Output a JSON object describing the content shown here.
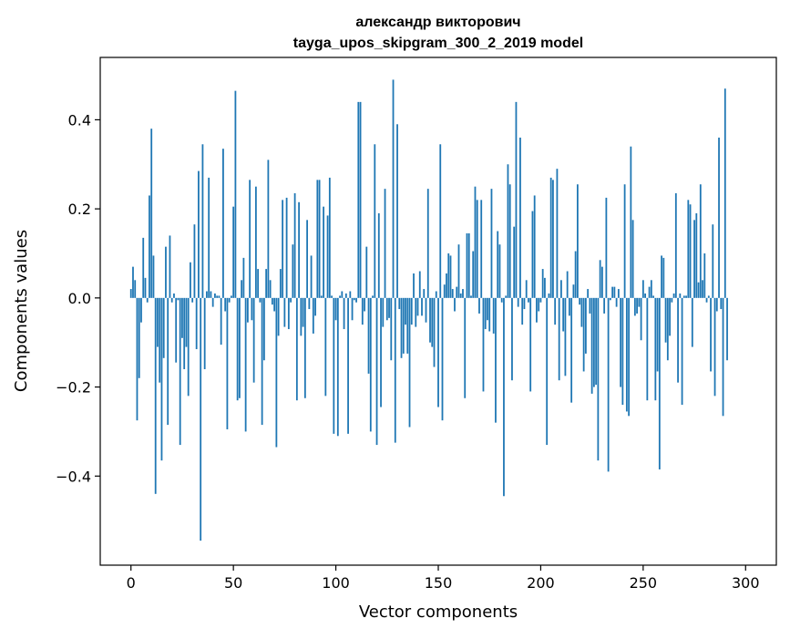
{
  "chart_data": {
    "type": "bar",
    "title": "александр викторович",
    "subtitle": "tayga_upos_skipgram_300_2_2019 model",
    "xlabel": "Vector components",
    "ylabel": "Components values",
    "xlim": [
      -15,
      315
    ],
    "ylim": [
      -0.6,
      0.54
    ],
    "xticks": [
      0,
      50,
      100,
      150,
      200,
      250,
      300
    ],
    "xtick_labels": [
      "0",
      "50",
      "100",
      "150",
      "200",
      "250",
      "300"
    ],
    "yticks": [
      -0.4,
      -0.2,
      0.0,
      0.2,
      0.4
    ],
    "ytick_labels": [
      "−0.4",
      "−0.2",
      "0.0",
      "0.2",
      "0.4"
    ],
    "grid": false,
    "bar_color": "#1f77b4",
    "values": [
      0.02,
      0.07,
      0.04,
      -0.275,
      -0.18,
      -0.055,
      0.135,
      0.045,
      -0.01,
      0.23,
      0.38,
      0.095,
      -0.44,
      -0.11,
      -0.19,
      -0.365,
      -0.135,
      0.115,
      -0.285,
      0.14,
      -0.01,
      0.01,
      -0.145,
      -0.005,
      -0.33,
      -0.09,
      -0.16,
      -0.11,
      -0.22,
      0.08,
      -0.01,
      0.165,
      -0.115,
      0.285,
      -0.545,
      0.345,
      -0.16,
      0.015,
      0.27,
      0.015,
      -0.02,
      0.01,
      0.005,
      0.005,
      -0.105,
      0.335,
      -0.03,
      -0.295,
      -0.01,
      0.005,
      0.205,
      0.465,
      -0.23,
      -0.225,
      0.04,
      0.09,
      -0.3,
      -0.055,
      0.265,
      -0.05,
      -0.19,
      0.25,
      0.065,
      -0.01,
      -0.285,
      -0.14,
      0.065,
      0.31,
      0.04,
      -0.015,
      -0.03,
      -0.335,
      -0.085,
      0.065,
      0.22,
      -0.065,
      0.225,
      -0.07,
      -0.01,
      0.12,
      0.235,
      -0.23,
      0.215,
      -0.085,
      -0.065,
      -0.225,
      0.175,
      -0.025,
      0.095,
      -0.08,
      -0.04,
      0.265,
      0.265,
      0.005,
      0.205,
      -0.22,
      0.185,
      0.27,
      0.005,
      -0.305,
      -0.05,
      -0.31,
      0.005,
      0.015,
      -0.07,
      0.01,
      -0.305,
      0.015,
      -0.05,
      -0.005,
      -0.01,
      0.44,
      0.44,
      -0.06,
      -0.03,
      0.115,
      -0.17,
      -0.3,
      0.005,
      0.345,
      -0.33,
      0.19,
      -0.245,
      -0.065,
      0.245,
      -0.05,
      -0.045,
      -0.14,
      0.49,
      -0.325,
      0.39,
      -0.025,
      -0.135,
      -0.125,
      -0.06,
      -0.125,
      -0.29,
      -0.06,
      0.055,
      -0.065,
      -0.04,
      0.06,
      -0.04,
      0.02,
      -0.055,
      0.245,
      -0.1,
      -0.11,
      -0.155,
      0.015,
      -0.245,
      0.345,
      -0.275,
      0.03,
      0.055,
      0.1,
      0.095,
      0.02,
      -0.03,
      0.025,
      0.12,
      0.01,
      0.02,
      -0.225,
      0.145,
      0.145,
      0.005,
      0.105,
      0.25,
      0.22,
      -0.035,
      0.22,
      -0.21,
      -0.07,
      -0.05,
      -0.075,
      0.245,
      -0.08,
      -0.28,
      0.15,
      0.12,
      -0.01,
      -0.445,
      0.005,
      0.3,
      0.255,
      -0.185,
      0.16,
      0.44,
      -0.02,
      0.36,
      -0.06,
      -0.025,
      0.04,
      -0.01,
      -0.21,
      0.195,
      0.23,
      -0.055,
      -0.03,
      -0.01,
      0.065,
      0.045,
      -0.33,
      0.01,
      0.27,
      0.265,
      -0.06,
      0.29,
      -0.185,
      0.04,
      -0.075,
      -0.175,
      0.06,
      -0.04,
      -0.235,
      0.03,
      0.105,
      0.255,
      -0.015,
      -0.065,
      -0.165,
      -0.125,
      0.02,
      -0.035,
      -0.215,
      -0.2,
      -0.195,
      -0.365,
      0.085,
      0.07,
      -0.035,
      0.225,
      -0.39,
      -0.005,
      0.025,
      0.025,
      -0.02,
      0.02,
      -0.2,
      -0.24,
      0.255,
      -0.255,
      -0.265,
      0.34,
      0.175,
      -0.04,
      -0.035,
      -0.02,
      -0.095,
      0.04,
      0.01,
      -0.23,
      0.025,
      0.04,
      0.005,
      -0.23,
      -0.165,
      -0.385,
      0.095,
      0.09,
      -0.1,
      -0.14,
      -0.085,
      -0.01,
      0.01,
      0.235,
      -0.19,
      0.01,
      -0.24,
      0.005,
      0.005,
      0.22,
      0.21,
      -0.11,
      0.175,
      0.19,
      0.035,
      0.255,
      0.04,
      0.1,
      -0.01,
      0.005,
      -0.165,
      0.165,
      -0.22,
      -0.03,
      0.36,
      -0.025,
      -0.265,
      0.47,
      -0.14
    ]
  }
}
